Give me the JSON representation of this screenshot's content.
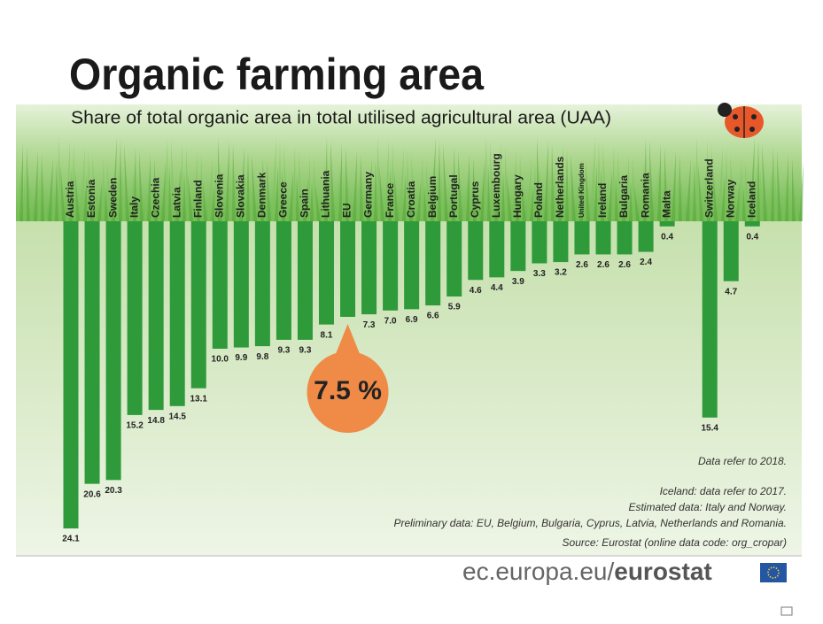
{
  "chart_data": {
    "type": "bar",
    "title": "Organic farming area",
    "subtitle": "Share of total organic area in total utilised agricultural area (UAA)",
    "categories": [
      "Austria",
      "Estonia",
      "Sweden",
      "Italy",
      "Czechia",
      "Latvia",
      "Finland",
      "Slovenia",
      "Slovakia",
      "Denmark",
      "Greece",
      "Spain",
      "Lithuania",
      "EU",
      "Germany",
      "France",
      "Croatia",
      "Belgium",
      "Portugal",
      "Cyprus",
      "Luxembourg",
      "Hungary",
      "Poland",
      "Netherlands",
      "United Kingdom",
      "Ireland",
      "Bulgaria",
      "Romania",
      "Malta",
      "Switzerland",
      "Norway",
      "Iceland"
    ],
    "values": [
      24.1,
      20.6,
      20.3,
      15.2,
      14.8,
      14.5,
      13.1,
      10.0,
      9.9,
      9.8,
      9.3,
      9.3,
      8.1,
      7.5,
      7.3,
      7.0,
      6.9,
      6.6,
      5.9,
      4.6,
      4.4,
      3.9,
      3.3,
      3.2,
      2.6,
      2.6,
      2.6,
      2.4,
      0.4,
      15.4,
      4.7,
      0.4
    ],
    "value_labels": [
      "24.1",
      "20.6",
      "20.3",
      "15.2",
      "14.8",
      "14.5",
      "13.1",
      "10.0",
      "9.9",
      "9.8",
      "9.3",
      "9.3",
      "8.1",
      "7.5 %",
      "7.3",
      "7.0",
      "6.9",
      "6.6",
      "5.9",
      "4.6",
      "4.4",
      "3.9",
      "3.3",
      "3.2",
      "2.6",
      "2.6",
      "2.6",
      "2.4",
      "0.4",
      "15.4",
      "4.7",
      "0.4"
    ],
    "highlight": "EU",
    "highlight_color": "#ef8a47",
    "color": "#2e9a3a",
    "ylim": [
      0,
      25
    ],
    "notes": [
      "Data refer to 2018.",
      "Iceland: data refer to 2017.",
      "Estimated data:  Italy and Norway.",
      "Preliminary data: EU, Belgium, Bulgaria, Cyprus, Latvia, Netherlands and Romania.",
      "Source: Eurostat (online data code: org_cropar)"
    ],
    "footer": [
      "ec.europa.eu/",
      "eurostat"
    ]
  }
}
